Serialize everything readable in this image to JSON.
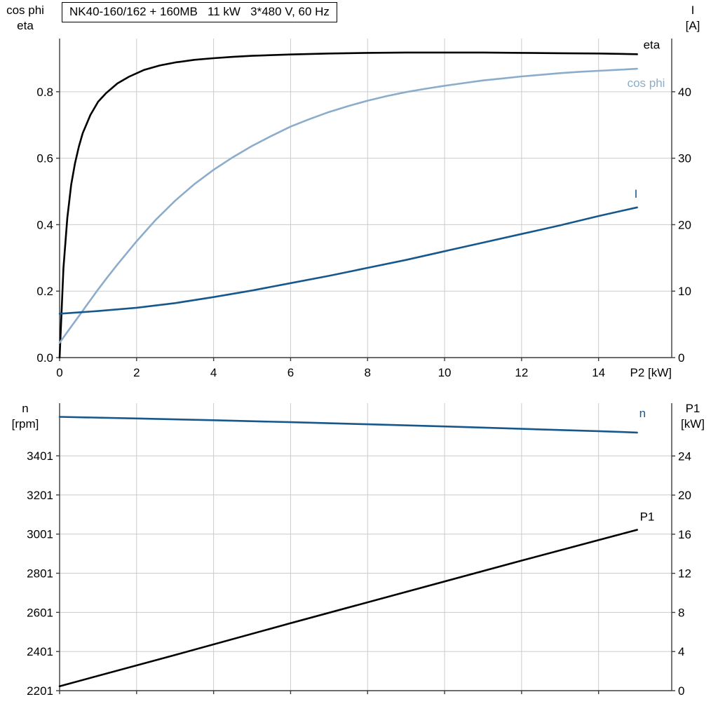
{
  "header": {
    "title": "NK40-160/162 + 160MB   11 kW   3*480 V, 60 Hz"
  },
  "colors": {
    "grid": "#cbcbcb",
    "axis": "#3c3c3c",
    "text": "#000000",
    "black_curve": "#000000",
    "light_blue": "#8badcb",
    "dark_blue": "#17588c"
  },
  "chart_data": [
    {
      "type": "line",
      "name": "motor-efficiency-current-chart",
      "grid": true,
      "x_axis": {
        "range": [
          0,
          15.9
        ],
        "ticks": [
          0,
          2,
          4,
          6,
          8,
          10,
          12,
          14
        ],
        "tick_labels": [
          "0",
          "2",
          "4",
          "6",
          "8",
          "10",
          "12",
          "14"
        ],
        "unit_label": "P2 [kW]"
      },
      "left_axis": {
        "title_lines": [
          "cos phi",
          "eta"
        ],
        "range": [
          0,
          0.96
        ],
        "ticks": [
          0.0,
          0.2,
          0.4,
          0.6,
          0.8
        ],
        "tick_labels": [
          "0.0",
          "0.2",
          "0.4",
          "0.6",
          "0.8"
        ]
      },
      "right_axis": {
        "title_lines": [
          "I",
          "[A]"
        ],
        "range": [
          0,
          48
        ],
        "ticks": [
          0,
          10,
          20,
          30,
          40
        ],
        "tick_labels": [
          "0",
          "10",
          "20",
          "30",
          "40"
        ]
      },
      "series": [
        {
          "name": "eta",
          "label": "eta",
          "color": "#000000",
          "axis": "left",
          "label_dx": 9,
          "label_dy": -8,
          "x": [
            0,
            0.1,
            0.2,
            0.3,
            0.4,
            0.5,
            0.6,
            0.8,
            1,
            1.2,
            1.5,
            1.8,
            2.2,
            2.6,
            3,
            3.5,
            4,
            4.5,
            5,
            6,
            7,
            8,
            9,
            10,
            11,
            12,
            13,
            14,
            15
          ],
          "y": [
            0,
            0.27,
            0.42,
            0.52,
            0.585,
            0.635,
            0.675,
            0.73,
            0.77,
            0.795,
            0.825,
            0.845,
            0.866,
            0.879,
            0.888,
            0.896,
            0.901,
            0.905,
            0.908,
            0.912,
            0.915,
            0.917,
            0.918,
            0.918,
            0.918,
            0.917,
            0.916,
            0.915,
            0.913
          ]
        },
        {
          "name": "cos-phi",
          "label": "cos phi",
          "color": "#8badcb",
          "axis": "left",
          "label_dx": -14,
          "label_dy": 26,
          "x": [
            0,
            0.25,
            0.5,
            0.75,
            1,
            1.25,
            1.5,
            2,
            2.5,
            3,
            3.5,
            4,
            4.5,
            5,
            5.5,
            6,
            6.5,
            7,
            7.5,
            8,
            8.5,
            9,
            9.5,
            10,
            10.5,
            11,
            11.5,
            12,
            12.5,
            13,
            13.5,
            14,
            14.5,
            15
          ],
          "y": [
            0.045,
            0.085,
            0.125,
            0.165,
            0.205,
            0.243,
            0.28,
            0.35,
            0.415,
            0.472,
            0.522,
            0.565,
            0.603,
            0.637,
            0.667,
            0.695,
            0.718,
            0.739,
            0.757,
            0.773,
            0.787,
            0.799,
            0.809,
            0.818,
            0.826,
            0.834,
            0.84,
            0.846,
            0.851,
            0.856,
            0.86,
            0.863,
            0.866,
            0.869
          ]
        },
        {
          "name": "current-I",
          "label": "I",
          "color": "#17588c",
          "axis": "right",
          "label_dx": -4,
          "label_dy": -14,
          "x": [
            0,
            1,
            2,
            3,
            4,
            5,
            6,
            7,
            8,
            9,
            10,
            11,
            12,
            13,
            14,
            15
          ],
          "y": [
            6.6,
            7.0,
            7.5,
            8.2,
            9.1,
            10.1,
            11.2,
            12.3,
            13.5,
            14.7,
            16.0,
            17.3,
            18.6,
            19.9,
            21.3,
            22.6
          ]
        }
      ]
    },
    {
      "type": "line",
      "name": "speed-power-chart",
      "grid": true,
      "x_axis": {
        "range": [
          0,
          15.9
        ],
        "ticks": [
          0,
          2,
          4,
          6,
          8,
          10,
          12,
          14
        ],
        "tick_labels": [],
        "unit_label": ""
      },
      "left_axis": {
        "title_lines": [
          "n",
          "[rpm]"
        ],
        "range": [
          2201,
          3670
        ],
        "ticks": [
          2201,
          2401,
          2601,
          2801,
          3001,
          3201,
          3401
        ],
        "tick_labels": [
          "2201",
          "2401",
          "2601",
          "2801",
          "3001",
          "3201",
          "3401"
        ]
      },
      "right_axis": {
        "title_lines": [
          "P1",
          "[kW]"
        ],
        "range": [
          0,
          29.4
        ],
        "ticks": [
          0,
          4,
          8,
          12,
          16,
          20,
          24
        ],
        "tick_labels": [
          "0",
          "4",
          "8",
          "12",
          "16",
          "20",
          "24"
        ]
      },
      "series": [
        {
          "name": "speed-n",
          "label": "n",
          "color": "#17588c",
          "axis": "left",
          "label_dx": 3,
          "label_dy": -22,
          "x": [
            0,
            2,
            4,
            6,
            8,
            10,
            12,
            14,
            15
          ],
          "y": [
            3600,
            3592,
            3583,
            3573,
            3562,
            3551,
            3539,
            3527,
            3520
          ]
        },
        {
          "name": "power-P1",
          "label": "P1",
          "color": "#000000",
          "axis": "right",
          "label_dx": 4,
          "label_dy": -13,
          "x": [
            0,
            3,
            6,
            9,
            12,
            15
          ],
          "y": [
            0.45,
            3.65,
            6.9,
            10.1,
            13.3,
            16.45
          ]
        }
      ]
    }
  ]
}
